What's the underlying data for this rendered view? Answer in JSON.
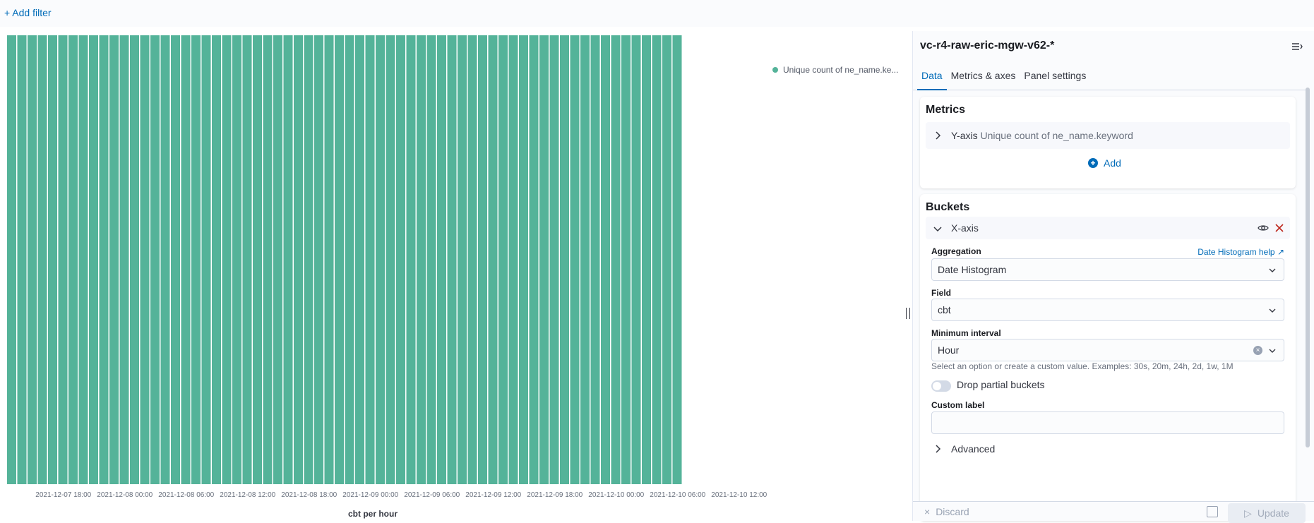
{
  "filter_bar": {
    "add_filter_label": "+ Add filter"
  },
  "chart_data": {
    "type": "bar",
    "x_start": "2021-12-07 13:00",
    "interval": "1h",
    "values": [
      1,
      1,
      1,
      1,
      1,
      1,
      1,
      1,
      1,
      1,
      1,
      1,
      1,
      1,
      1,
      1,
      1,
      1,
      1,
      1,
      1,
      1,
      1,
      1,
      1,
      1,
      1,
      1,
      1,
      1,
      1,
      1,
      1,
      1,
      1,
      1,
      1,
      1,
      1,
      1,
      1,
      1,
      1,
      1,
      1,
      1,
      1,
      1,
      1,
      1,
      1,
      1,
      1,
      1,
      1,
      1,
      1,
      1,
      1,
      1,
      1,
      1,
      1,
      1,
      1,
      1
    ],
    "tick_labels": [
      "2021-12-07 18:00",
      "2021-12-08 00:00",
      "2021-12-08 06:00",
      "2021-12-08 12:00",
      "2021-12-08 18:00",
      "2021-12-09 00:00",
      "2021-12-09 06:00",
      "2021-12-09 12:00",
      "2021-12-09 18:00",
      "2021-12-10 00:00",
      "2021-12-10 06:00",
      "2021-12-10 12:00"
    ],
    "xlabel": "cbt per hour",
    "ylabel": "",
    "legend": [
      "Unique count of ne_name.ke..."
    ],
    "legend_position": "top-right",
    "color": "#54b399",
    "grid": false
  },
  "sidebar": {
    "index_title": "vc-r4-raw-eric-mgw-v62-*",
    "tabs": [
      "Data",
      "Metrics & axes",
      "Panel settings"
    ],
    "active_tab": "Data",
    "metrics": {
      "title": "Metrics",
      "y_axis_label": "Y-axis",
      "y_axis_desc": "Unique count of ne_name.keyword",
      "add_label": "Add"
    },
    "buckets": {
      "title": "Buckets",
      "x_axis_label": "X-axis",
      "aggregation_label": "Aggregation",
      "aggregation_help": "Date Histogram help",
      "aggregation_value": "Date Histogram",
      "field_label": "Field",
      "field_value": "cbt",
      "min_interval_label": "Minimum interval",
      "min_interval_value": "Hour",
      "min_interval_hint": "Select an option or create a custom value. Examples: 30s, 20m, 24h, 2d, 1w, 1M",
      "drop_partial_label": "Drop partial buckets",
      "custom_label_label": "Custom label",
      "custom_label_value": "",
      "advanced_label": "Advanced"
    },
    "footer": {
      "discard_label": "Discard",
      "update_label": "Update"
    }
  },
  "colors": {
    "accent": "#006bb8",
    "bar": "#54b399",
    "delete": "#bd271e"
  }
}
